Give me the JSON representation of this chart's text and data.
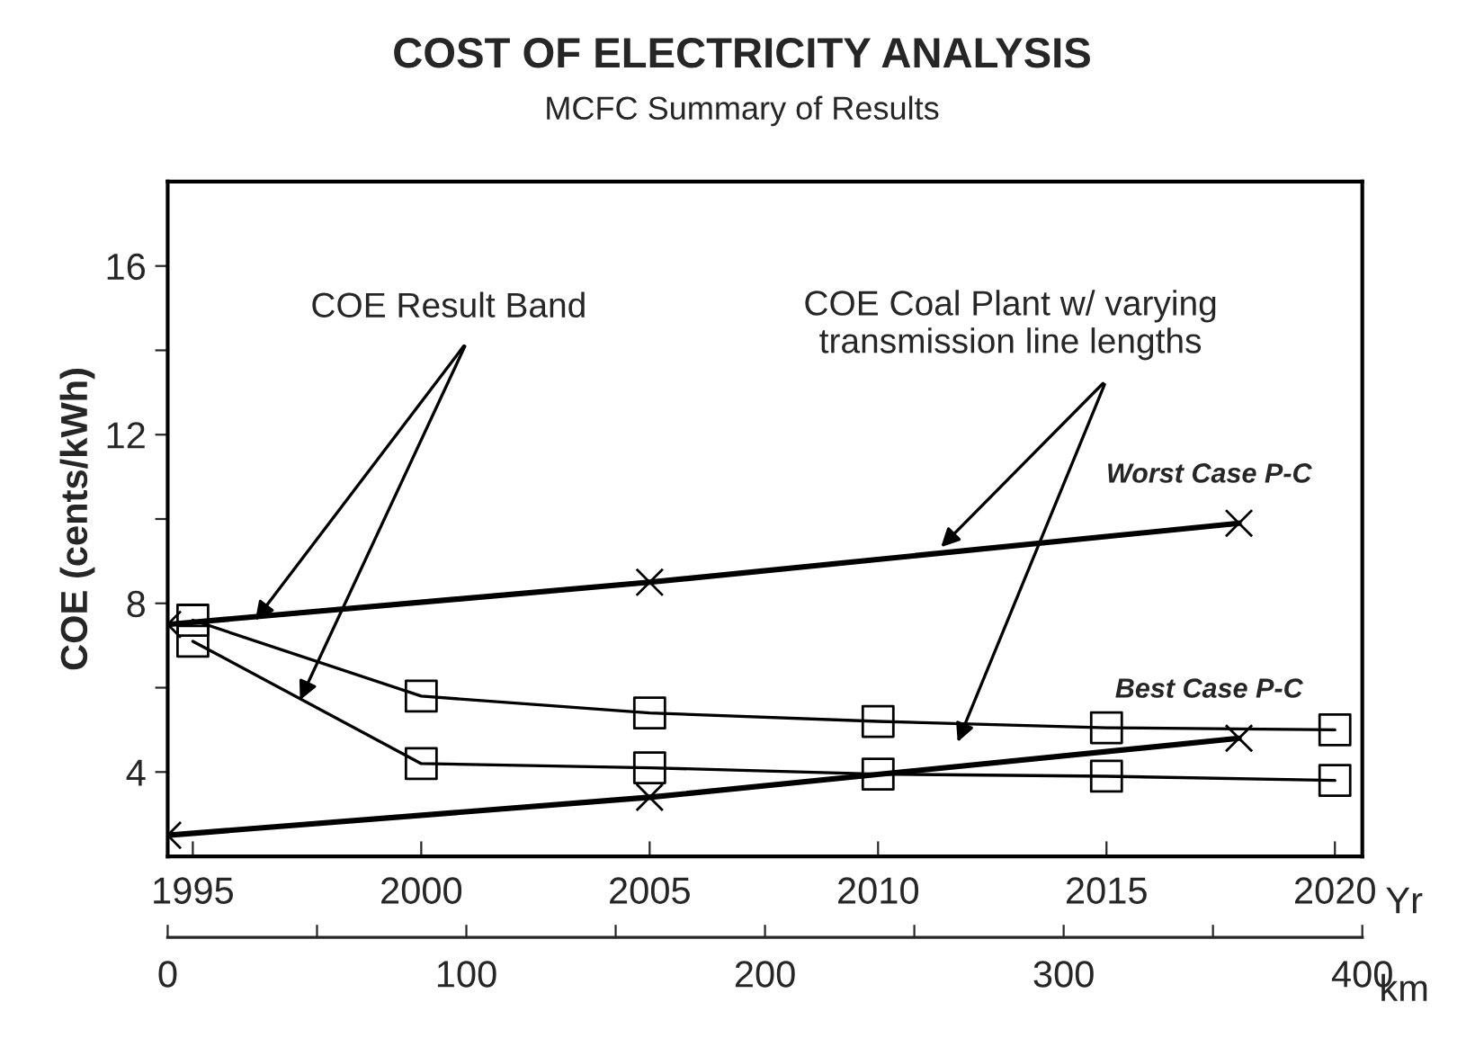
{
  "chart_data": {
    "type": "line",
    "title": "COST OF ELECTRICITY ANALYSIS",
    "subtitle": "MCFC Summary of Results",
    "ylabel": "COE (cents/kWh)",
    "xlabel": "Yr",
    "x2label": "km",
    "annotations": [
      {
        "text": "COE Result Band",
        "x": 1996.3,
        "y": 7.5
      },
      {
        "text": "COE Coal Plant w/ varying\ntransmission line lengths",
        "x": 2011.3,
        "y": 9.25
      }
    ],
    "series": [
      {
        "name": "Worst Case P-C",
        "color": "#000000",
        "marker": "cross",
        "x": [
          1994.45,
          2005,
          2017.9
        ],
        "values": [
          7.5,
          8.5,
          9.9
        ]
      },
      {
        "name": "Best Case P-C",
        "color": "#000000",
        "marker": "cross",
        "x": [
          1994.45,
          2005,
          2017.9
        ],
        "values": [
          2.5,
          3.4,
          4.8
        ]
      },
      {
        "color": "#000000",
        "marker": "square",
        "x": [
          1995,
          2000,
          2005,
          2010,
          2015,
          2020
        ],
        "values": [
          7.6,
          5.8,
          5.4,
          5.2,
          5.05,
          5.0
        ]
      },
      {
        "color": "#000000",
        "marker": "square",
        "x": [
          1995,
          2000,
          2005,
          2010,
          2015,
          2020
        ],
        "values": [
          7.1,
          4.2,
          4.1,
          3.95,
          3.9,
          3.8
        ]
      }
    ],
    "xlim": [
      1994.45,
      2020.6
    ],
    "xticks": [
      1995,
      2000,
      2005,
      2010,
      2015,
      2020
    ],
    "x2lim": [
      0,
      400
    ],
    "x2ticks": [
      0,
      {
        "value": 50,
        "label": null
      },
      100,
      {
        "value": 150,
        "label": null
      },
      200,
      {
        "value": 250,
        "label": null
      },
      300,
      {
        "value": 350,
        "label": null
      },
      400
    ],
    "ylim": [
      2,
      18
    ],
    "yticks": [
      4,
      {
        "value": 6,
        "label": null
      },
      8,
      {
        "value": 10,
        "label": null
      },
      12,
      {
        "value": 14,
        "label": null
      },
      16
    ],
    "grid": false,
    "legend": false,
    "line_style": "solid"
  }
}
